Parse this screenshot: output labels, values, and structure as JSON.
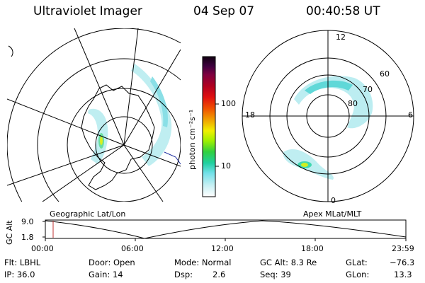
{
  "header": {
    "instrument": "Ultraviolet Imager",
    "date": "04 Sep 07",
    "time": "00:40:58 UT"
  },
  "colorbar": {
    "unit_label": "photon cm⁻²s⁻¹",
    "ticks": [
      "100",
      "10"
    ]
  },
  "polar_plot": {
    "mlt_labels": {
      "top": "12",
      "left": "18",
      "right": "6",
      "bottom": "0"
    },
    "lat_labels": [
      "60",
      "70",
      "80"
    ]
  },
  "projection_labels": {
    "left": "Geographic Lat/Lon",
    "right": "Apex MLat/MLT"
  },
  "altitude_plot": {
    "ylabel": "GC Alt",
    "yticks": [
      "9.0",
      "1.8"
    ],
    "xticks": [
      "00:00",
      "06:00",
      "12:00",
      "18:00",
      "23:59"
    ]
  },
  "status": {
    "filter": "Flt: LBHL",
    "ip": "IP: 36.0",
    "door": "Door: Open",
    "gain": "Gain: 14",
    "mode": "Mode: Normal",
    "dsp_label": "Dsp:",
    "dsp_value": "2.6",
    "gc_alt": "GC Alt: 8.3 Re",
    "seq": "Seq: 39",
    "glat_label": "GLat:",
    "glat_value": "−76.3",
    "glon_label": "GLon:",
    "glon_value": "13.3"
  },
  "colors": {
    "aurora": "#a8e8ec",
    "aurora_bright": "#40d8d0",
    "hotspot": "#e0f020",
    "marker": "#c03030"
  }
}
